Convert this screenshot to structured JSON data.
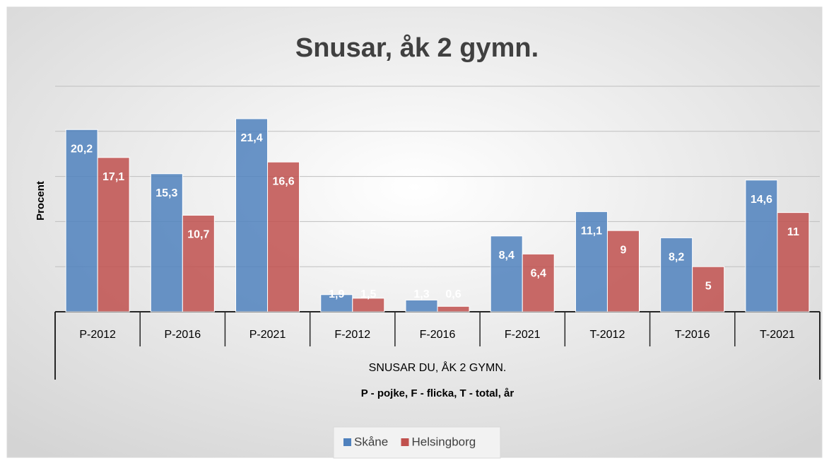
{
  "chart_data": {
    "type": "bar",
    "title": "Snusar, åk 2 gymn.",
    "y_label": "Procent",
    "x_label": "SNUSAR DU, ÅK 2 GYMN.",
    "x_sublabel": "P - pojke, F - flicka, T - total, år",
    "categories": [
      "P-2012",
      "P-2016",
      "P-2021",
      "F-2012",
      "F-2016",
      "F-2021",
      "T-2012",
      "T-2016",
      "T-2021"
    ],
    "series": [
      {
        "name": "Skåne",
        "color": "#4f81bd",
        "values": [
          20.2,
          15.3,
          21.4,
          1.9,
          1.3,
          8.4,
          11.1,
          8.2,
          14.6
        ],
        "value_labels": [
          "20,2",
          "15,3",
          "21,4",
          "1,9",
          "1,3",
          "8,4",
          "11,1",
          "8,2",
          "14,6"
        ]
      },
      {
        "name": "Helsingborg",
        "color": "#c0504d",
        "values": [
          17.1,
          10.7,
          16.6,
          1.5,
          0.6,
          6.4,
          9,
          5,
          11
        ],
        "value_labels": [
          "17,1",
          "10,7",
          "16,6",
          "1,5",
          "0,6",
          "6,4",
          "9",
          "5",
          "11"
        ]
      }
    ],
    "ylim": [
      0,
      25
    ],
    "yticks": [
      0,
      5,
      10,
      15,
      20,
      25
    ],
    "grid": true,
    "legend": "bottom"
  }
}
